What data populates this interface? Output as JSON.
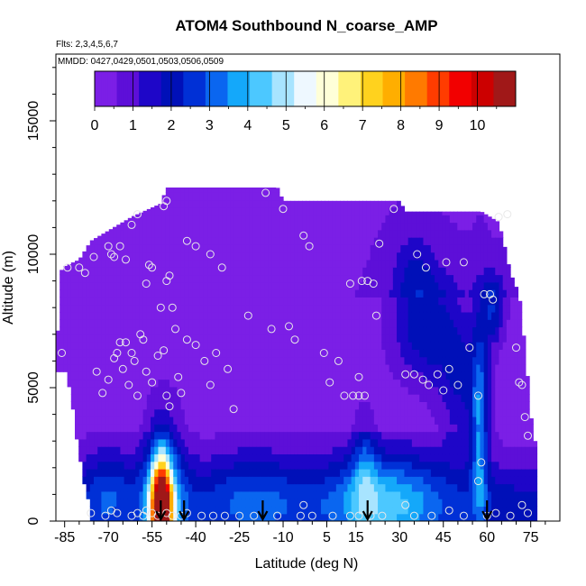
{
  "chart_data": {
    "type": "heatmap",
    "title": "ATOM4 Southbound N_coarse_AMP",
    "subtitle_flights": "Flts: 2,3,4,5,6,7",
    "subtitle_dates": "MMDD: 0427,0429,0501,0503,0506,0509",
    "xlabel": "Latitude (deg N)",
    "ylabel": "Altitude (m)",
    "xlim": [
      -88,
      85
    ],
    "ylim": [
      0,
      17500
    ],
    "xticks": [
      -85,
      -70,
      -55,
      -40,
      -25,
      -10,
      5,
      15,
      30,
      45,
      60,
      75
    ],
    "yticks": [
      0,
      5000,
      10000,
      15000
    ],
    "colorbar": {
      "range": [
        0,
        11
      ],
      "ticks": [
        0,
        1,
        2,
        3,
        4,
        5,
        6,
        7,
        8,
        9,
        10
      ],
      "colors": [
        "#7b1fe6",
        "#5d0fd8",
        "#1e06c8",
        "#0010b8",
        "#0030d6",
        "#0a66f0",
        "#14a8fa",
        "#4cc8ff",
        "#a8e4ff",
        "#eef8ff",
        "#ffffd8",
        "#fff27a",
        "#ffd21e",
        "#ffae00",
        "#ff7a00",
        "#ff3c00",
        "#f20000",
        "#cc0000",
        "#a01818"
      ]
    },
    "arrows_lat": [
      -52,
      -44,
      -17,
      19,
      60
    ],
    "sample_points": [
      [
        -86,
        6300
      ],
      [
        -84,
        9500
      ],
      [
        -80,
        9500
      ],
      [
        -78,
        9300
      ],
      [
        -74,
        5600
      ],
      [
        -72,
        4800
      ],
      [
        -75,
        9900
      ],
      [
        -70,
        5300
      ],
      [
        -68,
        6100
      ],
      [
        -67,
        6300
      ],
      [
        -66,
        6700
      ],
      [
        -65,
        5700
      ],
      [
        -64,
        6700
      ],
      [
        -63,
        5100
      ],
      [
        -62,
        6300
      ],
      [
        -61,
        6000
      ],
      [
        -60,
        4700
      ],
      [
        -59,
        7000
      ],
      [
        -58,
        6800
      ],
      [
        -57,
        5600
      ],
      [
        -55,
        5200
      ],
      [
        -53,
        6200
      ],
      [
        -51,
        6400
      ],
      [
        -50,
        4700
      ],
      [
        -49,
        4300
      ],
      [
        -47,
        7200
      ],
      [
        -46,
        5400
      ],
      [
        -45,
        4800
      ],
      [
        -43,
        6800
      ],
      [
        -40,
        6600
      ],
      [
        -37,
        6000
      ],
      [
        -35,
        5100
      ],
      [
        -33,
        6300
      ],
      [
        -29,
        5700
      ],
      [
        -27,
        4200
      ],
      [
        -62,
        11100
      ],
      [
        -60,
        11500
      ],
      [
        -66,
        10300
      ],
      [
        -69,
        10000
      ],
      [
        -70,
        10300
      ],
      [
        -68,
        9900
      ],
      [
        -64,
        9800
      ],
      [
        -57,
        8900
      ],
      [
        -56,
        9600
      ],
      [
        -55,
        9500
      ],
      [
        -50,
        9000
      ],
      [
        -49,
        9200
      ],
      [
        -52,
        8000
      ],
      [
        -48,
        8000
      ],
      [
        -43,
        10500
      ],
      [
        -40,
        10300
      ],
      [
        -35,
        10000
      ],
      [
        -31,
        9500
      ],
      [
        -22,
        7700
      ],
      [
        -51,
        11800
      ],
      [
        -50,
        12000
      ],
      [
        -16,
        12300
      ],
      [
        -10,
        11700
      ],
      [
        -14,
        7200
      ],
      [
        -6,
        6800
      ],
      [
        -8,
        7300
      ],
      [
        -3,
        10700
      ],
      [
        -1,
        10300
      ],
      [
        4,
        6300
      ],
      [
        6,
        5200
      ],
      [
        9,
        6000
      ],
      [
        11,
        4700
      ],
      [
        14,
        4700
      ],
      [
        16,
        5400
      ],
      [
        17,
        9000
      ],
      [
        19,
        9000
      ],
      [
        21,
        8900
      ],
      [
        22,
        7700
      ],
      [
        16,
        4700
      ],
      [
        13,
        8900
      ],
      [
        18,
        4700
      ],
      [
        23,
        10400
      ],
      [
        28,
        11700
      ],
      [
        32,
        5500
      ],
      [
        35,
        5500
      ],
      [
        38,
        5300
      ],
      [
        40,
        5100
      ],
      [
        43,
        5500
      ],
      [
        45,
        4900
      ],
      [
        47,
        5700
      ],
      [
        50,
        5100
      ],
      [
        36,
        10000
      ],
      [
        39,
        9500
      ],
      [
        46,
        9700
      ],
      [
        52,
        9700
      ],
      [
        54,
        6500
      ],
      [
        57,
        4700
      ],
      [
        59,
        8500
      ],
      [
        61,
        8500
      ],
      [
        62,
        8300
      ],
      [
        64,
        11400
      ],
      [
        67,
        11500
      ],
      [
        70,
        6500
      ],
      [
        71,
        5200
      ],
      [
        73,
        3900
      ],
      [
        74,
        3200
      ],
      [
        72,
        5100
      ],
      [
        -76,
        300
      ],
      [
        -71,
        200
      ],
      [
        -69,
        400
      ],
      [
        -67,
        300
      ],
      [
        -62,
        200
      ],
      [
        -60,
        300
      ],
      [
        -58,
        200
      ],
      [
        -57,
        400
      ],
      [
        -55,
        300
      ],
      [
        -53,
        200
      ],
      [
        -50,
        300
      ],
      [
        -48,
        200
      ],
      [
        -45,
        200
      ],
      [
        -43,
        300
      ],
      [
        -38,
        200
      ],
      [
        -34,
        200
      ],
      [
        -30,
        200
      ],
      [
        -25,
        200
      ],
      [
        -20,
        200
      ],
      [
        -12,
        200
      ],
      [
        -4,
        200
      ],
      [
        -3,
        600
      ],
      [
        0,
        200
      ],
      [
        7,
        200
      ],
      [
        13,
        200
      ],
      [
        16,
        200
      ],
      [
        20,
        200
      ],
      [
        24,
        200
      ],
      [
        32,
        600
      ],
      [
        35,
        200
      ],
      [
        41,
        200
      ],
      [
        47,
        400
      ],
      [
        52,
        200
      ],
      [
        60,
        200
      ],
      [
        63,
        300
      ],
      [
        68,
        200
      ],
      [
        72,
        600
      ],
      [
        74,
        300
      ],
      [
        57,
        1500
      ],
      [
        58,
        2200
      ]
    ]
  }
}
